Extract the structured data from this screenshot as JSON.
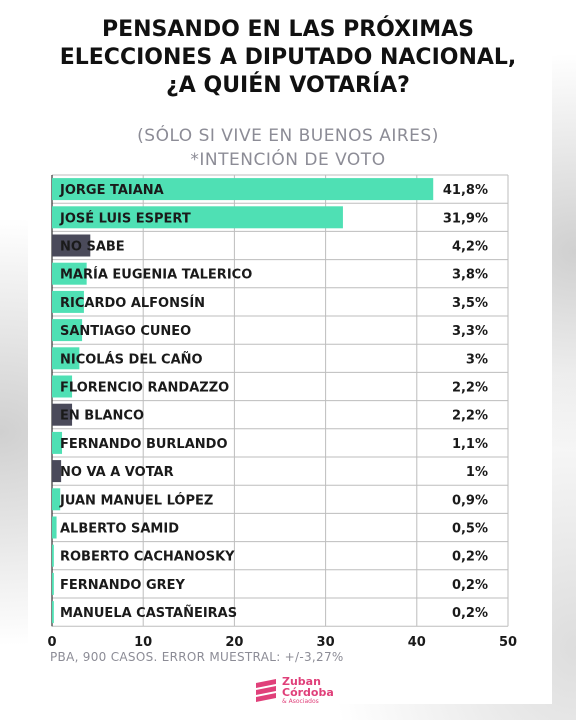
{
  "title_lines": [
    "PENSANDO EN LAS PRÓXIMAS",
    "ELECCIONES A DIPUTADO NACIONAL,",
    "¿A QUIÉN VOTARÍA?"
  ],
  "subtitle_lines": [
    "(SÓLO SI VIVE EN BUENOS AIRES)",
    "*INTENCIÓN DE VOTO"
  ],
  "footnote": "PBA, 900 CASOS. ERROR MUESTRAL: +/-3,27%",
  "logo": {
    "word1": "Zuban",
    "word2": "Córdoba",
    "tagline": "& Asociados",
    "color": "#e0407a"
  },
  "colors": {
    "candidate": "#4fe0b4",
    "other": "#4a4a5a",
    "grid": "#bdbdbd",
    "text": "#1a1a1a"
  },
  "chart_data": {
    "type": "bar",
    "orientation": "horizontal",
    "categories": [
      "JORGE TAIANA",
      "JOSÉ LUIS ESPERT",
      "NO SABE",
      "MARÍA EUGENIA TALERICO",
      "RICARDO ALFONSÍN",
      "SANTIAGO CUNEO",
      "NICOLÁS DEL CAÑO",
      "FLORENCIO RANDAZZO",
      "EN BLANCO",
      "FERNANDO BURLANDO",
      "NO VA A VOTAR",
      "JUAN MANUEL LÓPEZ",
      "ALBERTO SAMID",
      "ROBERTO CACHANOSKY",
      "FERNANDO GREY",
      "MANUELA CASTAÑEIRAS"
    ],
    "values": [
      41.8,
      31.9,
      4.2,
      3.8,
      3.5,
      3.3,
      3,
      2.2,
      2.2,
      1.1,
      1,
      0.9,
      0.5,
      0.2,
      0.2,
      0.2
    ],
    "value_labels": [
      "41,8%",
      "31,9%",
      "4,2%",
      "3,8%",
      "3,5%",
      "3,3%",
      "3%",
      "2,2%",
      "2,2%",
      "1,1%",
      "1%",
      "0,9%",
      "0,5%",
      "0,2%",
      "0,2%",
      "0,2%"
    ],
    "bar_kind": [
      "candidate",
      "candidate",
      "other",
      "candidate",
      "candidate",
      "candidate",
      "candidate",
      "candidate",
      "other",
      "candidate",
      "other",
      "candidate",
      "candidate",
      "candidate",
      "candidate",
      "candidate"
    ],
    "xlim": [
      0,
      50
    ],
    "xticks": [
      0,
      10,
      20,
      30,
      40,
      50
    ],
    "grid": true
  }
}
